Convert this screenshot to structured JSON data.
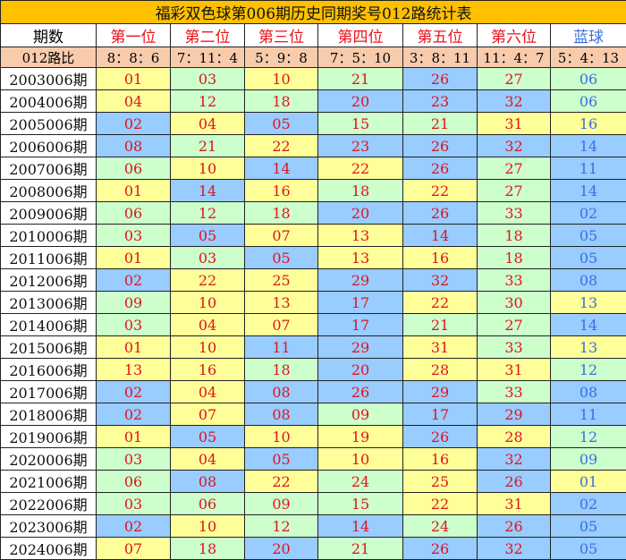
{
  "title": "福彩双色球第006期历史同期奖号012路统计表",
  "headers": [
    "期数",
    "第一位",
    "第二位",
    "第三位",
    "第四位",
    "第五位",
    "第六位",
    "蓝球"
  ],
  "ratio_label": "012路比",
  "ratios": [
    "8：8：6",
    "7：11：4",
    "5：9：8",
    "7：5：10",
    "3：8：11",
    "11：4：7",
    "5：4：13"
  ],
  "colors": {
    "mod0": "#CCFFCC",
    "mod1": "#FFFF99",
    "mod2": "#99CCFF",
    "red_text": "#e0141e",
    "blue_text": "#3a6fe0",
    "title_bg": "#FFC000",
    "ratio_bg": "#F8CBAD"
  },
  "rows": [
    {
      "period": "2003006期",
      "nums": [
        "01",
        "03",
        "10",
        "21",
        "26",
        "27",
        "06"
      ]
    },
    {
      "period": "2004006期",
      "nums": [
        "04",
        "12",
        "18",
        "20",
        "23",
        "32",
        "06"
      ]
    },
    {
      "period": "2005006期",
      "nums": [
        "02",
        "04",
        "05",
        "15",
        "21",
        "31",
        "16"
      ]
    },
    {
      "period": "2006006期",
      "nums": [
        "08",
        "21",
        "22",
        "23",
        "26",
        "32",
        "14"
      ]
    },
    {
      "period": "2007006期",
      "nums": [
        "06",
        "10",
        "14",
        "22",
        "26",
        "27",
        "11"
      ]
    },
    {
      "period": "2008006期",
      "nums": [
        "01",
        "14",
        "16",
        "18",
        "22",
        "27",
        "14"
      ]
    },
    {
      "period": "2009006期",
      "nums": [
        "06",
        "12",
        "18",
        "20",
        "26",
        "33",
        "02"
      ]
    },
    {
      "period": "2010006期",
      "nums": [
        "03",
        "05",
        "07",
        "13",
        "14",
        "18",
        "05"
      ]
    },
    {
      "period": "2011006期",
      "nums": [
        "01",
        "03",
        "05",
        "13",
        "16",
        "18",
        "05"
      ]
    },
    {
      "period": "2012006期",
      "nums": [
        "02",
        "22",
        "25",
        "29",
        "32",
        "33",
        "08"
      ]
    },
    {
      "period": "2013006期",
      "nums": [
        "09",
        "10",
        "13",
        "17",
        "22",
        "30",
        "13"
      ]
    },
    {
      "period": "2014006期",
      "nums": [
        "03",
        "04",
        "07",
        "17",
        "21",
        "27",
        "14"
      ]
    },
    {
      "period": "2015006期",
      "nums": [
        "01",
        "10",
        "11",
        "29",
        "31",
        "33",
        "13"
      ]
    },
    {
      "period": "2016006期",
      "nums": [
        "13",
        "16",
        "18",
        "20",
        "28",
        "31",
        "12"
      ]
    },
    {
      "period": "2017006期",
      "nums": [
        "02",
        "04",
        "08",
        "26",
        "29",
        "33",
        "08"
      ]
    },
    {
      "period": "2018006期",
      "nums": [
        "02",
        "07",
        "08",
        "09",
        "17",
        "29",
        "11"
      ]
    },
    {
      "period": "2019006期",
      "nums": [
        "01",
        "05",
        "10",
        "19",
        "26",
        "28",
        "12"
      ]
    },
    {
      "period": "2020006期",
      "nums": [
        "03",
        "04",
        "05",
        "10",
        "16",
        "32",
        "09"
      ]
    },
    {
      "period": "2021006期",
      "nums": [
        "06",
        "08",
        "22",
        "24",
        "25",
        "26",
        "01"
      ]
    },
    {
      "period": "2022006期",
      "nums": [
        "03",
        "06",
        "09",
        "15",
        "22",
        "31",
        "02"
      ]
    },
    {
      "period": "2023006期",
      "nums": [
        "02",
        "10",
        "12",
        "14",
        "24",
        "26",
        "05"
      ]
    },
    {
      "period": "2024006期",
      "nums": [
        "07",
        "18",
        "20",
        "21",
        "26",
        "32",
        "05"
      ]
    }
  ]
}
